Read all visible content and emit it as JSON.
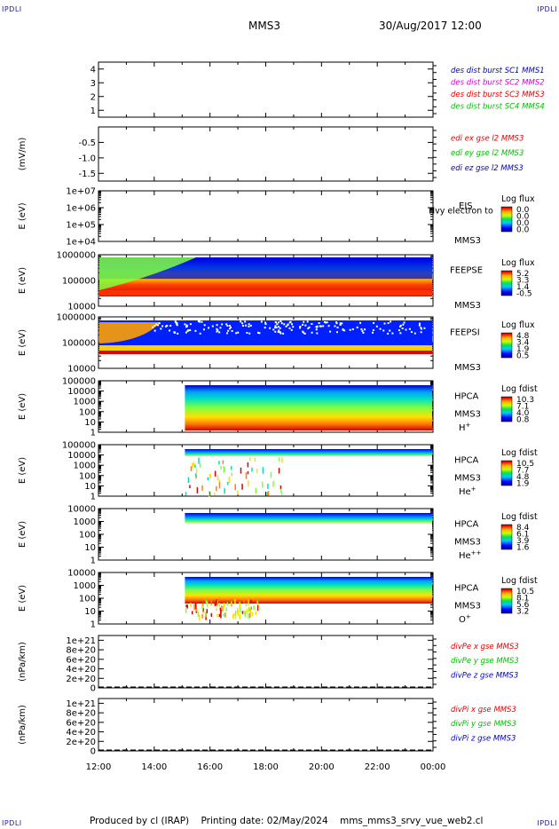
{
  "corner_label": "IPDLI",
  "header": {
    "spacecraft": "MMS3",
    "datetime": "30/Aug/2017 12:00"
  },
  "footer": "Produced by cl (IRAP)    Printing date: 02/May/2024    mms_mms3_srvy_vue_web2.cl",
  "colors": {
    "red": "#e00000",
    "green": "#00c000",
    "blue": "#0000c0",
    "magenta": "#d000d0"
  },
  "chart_data": [
    {
      "type": "line",
      "id": "p1",
      "ylim": [
        0.5,
        4.5
      ],
      "yticks": [
        "4",
        "3",
        "2",
        "1"
      ],
      "ytick_values": [
        4,
        3,
        2,
        1
      ],
      "legend": [
        {
          "text": "des dist burst SC1 MMS1",
          "color": "#0000c0"
        },
        {
          "text": "des dist burst SC2 MMS2",
          "color": "#d000d0"
        },
        {
          "text": "des dist burst SC3 MMS3",
          "color": "#e00000"
        },
        {
          "text": "des dist burst SC4 MMS4",
          "color": "#00c000"
        }
      ]
    },
    {
      "type": "line",
      "id": "p2",
      "ylabel": "(mV/m)",
      "ylim": [
        -1.75,
        0
      ],
      "yticks": [
        "-0.5",
        "-1.0",
        "-1.5"
      ],
      "ytick_values": [
        -0.5,
        -1.0,
        -1.5
      ],
      "legend": [
        {
          "text": "edi ex gse l2 MMS3",
          "color": "#e00000"
        },
        {
          "text": "edi ey gse l2 MMS3",
          "color": "#00c000"
        },
        {
          "text": "edi ez gse l2 MMS3",
          "color": "#0000c0"
        }
      ]
    },
    {
      "type": "heatmap",
      "id": "p3",
      "ylabel": "E (eV)",
      "yticks": [
        "1e+07",
        "1e+06",
        "1e+05",
        "1e+04"
      ],
      "instrument": "EIS",
      "instrument_extra": "Hvy electron to",
      "spacecraft": "MMS3",
      "colorbar": {
        "title": "Log flux",
        "ticks": [
          "0.0",
          "0.0",
          "0.0",
          "0.0"
        ]
      }
    },
    {
      "type": "heatmap",
      "id": "p4",
      "ylabel": "E (eV)",
      "yticks": [
        "1000000",
        "100000",
        "10000"
      ],
      "instrument": "FEEPSE",
      "spacecraft": "MMS3",
      "colorbar": {
        "title": "Log flux",
        "ticks": [
          "5.2",
          "3.3",
          "1.4",
          "-0.5"
        ]
      }
    },
    {
      "type": "heatmap",
      "id": "p5",
      "ylabel": "E (eV)",
      "yticks": [
        "1000000",
        "100000",
        "10000"
      ],
      "instrument": "FEEPSI",
      "spacecraft": "MMS3",
      "colorbar": {
        "title": "Log flux",
        "ticks": [
          "4.8",
          "3.4",
          "1.9",
          "0.5"
        ]
      }
    },
    {
      "type": "heatmap",
      "id": "p6",
      "ylabel": "E (eV)",
      "yticks": [
        "100000",
        "10000",
        "1000",
        "100",
        "10",
        "1"
      ],
      "instrument": "HPCA",
      "spacecraft": "MMS3",
      "species": "H",
      "species_sup": "+",
      "colorbar": {
        "title": "Log fdist",
        "ticks": [
          "10.3",
          "7.1",
          "4.0",
          "0.8"
        ]
      }
    },
    {
      "type": "heatmap",
      "id": "p7",
      "ylabel": "E (eV)",
      "yticks": [
        "100000",
        "10000",
        "1000",
        "100",
        "10",
        "1"
      ],
      "instrument": "HPCA",
      "spacecraft": "MMS3",
      "species": "He",
      "species_sup": "+",
      "colorbar": {
        "title": "Log fdist",
        "ticks": [
          "10.5",
          "7.7",
          "4.8",
          "1.9"
        ]
      }
    },
    {
      "type": "heatmap",
      "id": "p8",
      "ylabel": "E (eV)",
      "yticks": [
        "10000",
        "1000",
        "100",
        "10",
        "1"
      ],
      "instrument": "HPCA",
      "spacecraft": "MMS3",
      "species": "He",
      "species_sup": "++",
      "colorbar": {
        "title": "Log fdist",
        "ticks": [
          "8.4",
          "6.1",
          "3.9",
          "1.6"
        ]
      }
    },
    {
      "type": "heatmap",
      "id": "p9",
      "ylabel": "E (eV)",
      "yticks": [
        "10000",
        "1000",
        "100",
        "10",
        "1"
      ],
      "instrument": "HPCA",
      "spacecraft": "MMS3",
      "species": "O",
      "species_sup": "+",
      "colorbar": {
        "title": "Log fdist",
        "ticks": [
          "10.5",
          "8.1",
          "5.6",
          "3.2"
        ]
      }
    },
    {
      "type": "line",
      "id": "p10",
      "ylabel": "(nPa/km)",
      "ylim": [
        0,
        1.1e+21
      ],
      "yticks": [
        "1e+21",
        "8e+20",
        "6e+20",
        "4e+20",
        "2e+20",
        "0"
      ],
      "ytick_values": [
        1e+21,
        8e+20,
        6e+20,
        4e+20,
        2e+20,
        0
      ],
      "legend": [
        {
          "text": "divPe x gse MMS3",
          "color": "#e00000"
        },
        {
          "text": "divPe y gse MMS3",
          "color": "#00c000"
        },
        {
          "text": "divPe z gse MMS3",
          "color": "#0000c0"
        }
      ]
    },
    {
      "type": "line",
      "id": "p11",
      "ylabel": "(nPa/km)",
      "ylim": [
        0,
        1.1e+21
      ],
      "yticks": [
        "1e+21",
        "8e+20",
        "6e+20",
        "4e+20",
        "2e+20",
        "0"
      ],
      "ytick_values": [
        1e+21,
        8e+20,
        6e+20,
        4e+20,
        2e+20,
        0
      ],
      "legend": [
        {
          "text": "divPi x gse MMS3",
          "color": "#e00000"
        },
        {
          "text": "divPi y gse MMS3",
          "color": "#00c000"
        },
        {
          "text": "divPi z gse MMS3",
          "color": "#0000c0"
        }
      ]
    }
  ],
  "xaxis": {
    "ticks": [
      "12:00",
      "14:00",
      "16:00",
      "18:00",
      "20:00",
      "22:00",
      "00:00"
    ]
  }
}
